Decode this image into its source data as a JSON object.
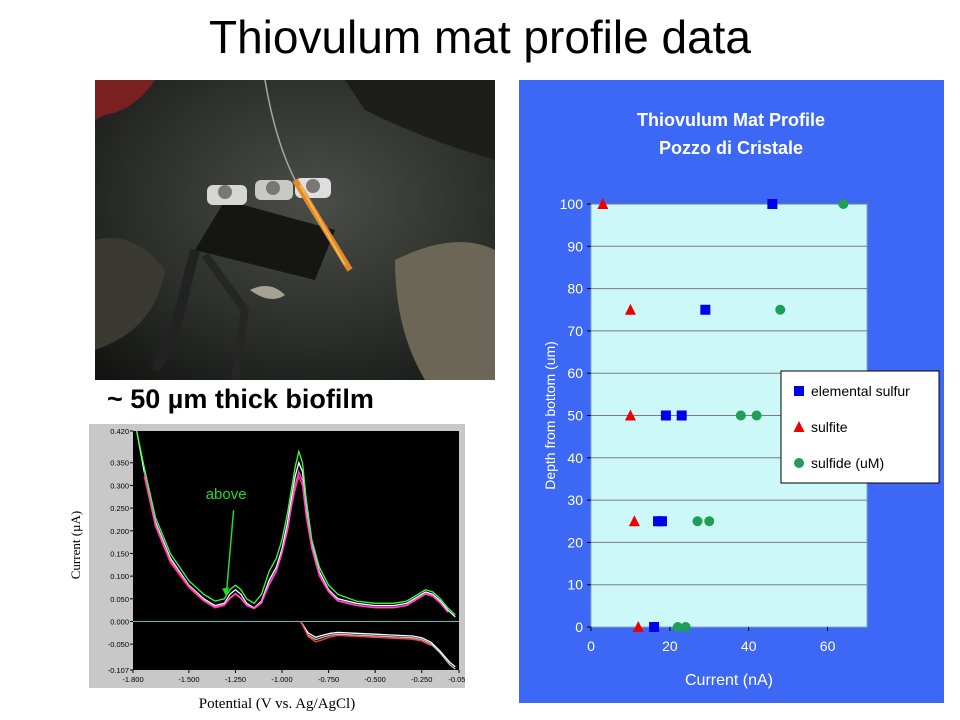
{
  "slide": {
    "title": "Thiovulum mat profile data",
    "photo_caption": "~ 50 µm thick biofilm"
  },
  "photo": {
    "icon": "field-electrode-photo"
  },
  "chart_data": [
    {
      "type": "line",
      "title": "",
      "xlabel": "Potential (V vs. Ag/AgCl)",
      "ylabel": "Current (µA)",
      "xlim": [
        -1.8,
        -0.05
      ],
      "ylim": [
        -0.107,
        0.42
      ],
      "xticks": [
        "-1.800",
        "-1.500",
        "-1.250",
        "-1.000",
        "-0.750",
        "-0.500",
        "-0.250",
        "-0.050"
      ],
      "xtick_values": [
        -1.8,
        -1.5,
        -1.25,
        -1.0,
        -0.75,
        -0.5,
        -0.25,
        -0.05
      ],
      "yticks": [
        "0.420",
        "0.350",
        "0.300",
        "0.250",
        "0.200",
        "0.150",
        "0.100",
        "0.050",
        "0.000",
        "-0.050",
        "-0.107"
      ],
      "ytick_values": [
        0.42,
        0.35,
        0.3,
        0.25,
        0.2,
        0.15,
        0.1,
        0.05,
        0.0,
        -0.05,
        -0.107
      ],
      "annotation": "above",
      "series": [
        {
          "color": "#ffffff",
          "x": [
            -1.78,
            -1.74,
            -1.68,
            -1.6,
            -1.5,
            -1.42,
            -1.36,
            -1.31,
            -1.28,
            -1.25,
            -1.22,
            -1.19,
            -1.15,
            -1.11,
            -1.07,
            -1.03,
            -1.0,
            -0.97,
            -0.95,
            -0.93,
            -0.91,
            -0.89,
            -0.87,
            -0.84,
            -0.8,
            -0.75,
            -0.7,
            -0.6,
            -0.5,
            -0.4,
            -0.33,
            -0.27,
            -0.23,
            -0.19,
            -0.15,
            -0.11,
            -0.07
          ],
          "y": [
            0.42,
            0.33,
            0.22,
            0.14,
            0.08,
            0.05,
            0.035,
            0.04,
            0.06,
            0.07,
            0.06,
            0.04,
            0.03,
            0.045,
            0.09,
            0.12,
            0.16,
            0.22,
            0.27,
            0.32,
            0.35,
            0.33,
            0.25,
            0.17,
            0.11,
            0.07,
            0.05,
            0.04,
            0.035,
            0.035,
            0.04,
            0.055,
            0.065,
            0.06,
            0.045,
            0.025,
            0.01
          ]
        },
        {
          "color": "#ff4040",
          "x": [
            -1.74,
            -1.68,
            -1.6,
            -1.5,
            -1.42,
            -1.36,
            -1.31,
            -1.28,
            -1.25,
            -1.22,
            -1.19,
            -1.15,
            -1.11,
            -1.07,
            -1.03,
            -1.0,
            -0.97,
            -0.95,
            -0.93,
            -0.91,
            -0.89,
            -0.87,
            -0.84,
            -0.8,
            -0.75,
            -0.7,
            -0.6,
            -0.5,
            -0.4,
            -0.33,
            -0.27,
            -0.23,
            -0.19,
            -0.15,
            -0.11
          ],
          "y": [
            0.32,
            0.21,
            0.13,
            0.075,
            0.045,
            0.03,
            0.035,
            0.05,
            0.06,
            0.05,
            0.035,
            0.028,
            0.04,
            0.08,
            0.11,
            0.15,
            0.2,
            0.25,
            0.29,
            0.32,
            0.3,
            0.23,
            0.16,
            0.1,
            0.065,
            0.045,
            0.035,
            0.03,
            0.03,
            0.035,
            0.05,
            0.06,
            0.055,
            0.04,
            0.02
          ]
        },
        {
          "color": "#ff44ff",
          "x": [
            -1.74,
            -1.68,
            -1.6,
            -1.5,
            -1.42,
            -1.36,
            -1.31,
            -1.28,
            -1.25,
            -1.22,
            -1.19,
            -1.15,
            -1.11,
            -1.07,
            -1.03,
            -1.0,
            -0.97,
            -0.95,
            -0.93,
            -0.91,
            -0.89,
            -0.87,
            -0.84,
            -0.8,
            -0.75,
            -0.7,
            -0.6,
            -0.5,
            -0.4,
            -0.33,
            -0.27,
            -0.23,
            -0.19,
            -0.15,
            -0.11
          ],
          "y": [
            0.33,
            0.215,
            0.135,
            0.078,
            0.047,
            0.032,
            0.037,
            0.052,
            0.062,
            0.052,
            0.036,
            0.029,
            0.042,
            0.082,
            0.112,
            0.152,
            0.205,
            0.255,
            0.3,
            0.33,
            0.31,
            0.24,
            0.165,
            0.105,
            0.067,
            0.046,
            0.036,
            0.031,
            0.031,
            0.036,
            0.052,
            0.062,
            0.057,
            0.041,
            0.021
          ]
        },
        {
          "color": "#3aff3a",
          "x": [
            -1.78,
            -1.74,
            -1.68,
            -1.6,
            -1.5,
            -1.42,
            -1.36,
            -1.31,
            -1.28,
            -1.25,
            -1.22,
            -1.19,
            -1.15,
            -1.11,
            -1.07,
            -1.03,
            -1.0,
            -0.97,
            -0.95,
            -0.93,
            -0.91,
            -0.89,
            -0.87,
            -0.84,
            -0.8,
            -0.75,
            -0.7,
            -0.6,
            -0.5,
            -0.4,
            -0.33,
            -0.27,
            -0.23,
            -0.19,
            -0.15,
            -0.11,
            -0.07
          ],
          "y": [
            0.42,
            0.34,
            0.23,
            0.15,
            0.09,
            0.06,
            0.045,
            0.05,
            0.07,
            0.08,
            0.07,
            0.05,
            0.04,
            0.06,
            0.11,
            0.14,
            0.18,
            0.24,
            0.29,
            0.34,
            0.375,
            0.35,
            0.27,
            0.18,
            0.12,
            0.08,
            0.06,
            0.045,
            0.04,
            0.04,
            0.045,
            0.06,
            0.07,
            0.065,
            0.05,
            0.03,
            0.015
          ]
        },
        {
          "color": "#c0c0c0",
          "x": [
            -0.9,
            -0.86,
            -0.82,
            -0.78,
            -0.74,
            -0.7,
            -0.6,
            -0.5,
            -0.4,
            -0.3,
            -0.25,
            -0.2,
            -0.15,
            -0.1,
            -0.07
          ],
          "y": [
            0.0,
            -0.03,
            -0.04,
            -0.035,
            -0.03,
            -0.028,
            -0.03,
            -0.032,
            -0.034,
            -0.036,
            -0.04,
            -0.05,
            -0.07,
            -0.095,
            -0.105
          ]
        },
        {
          "color": "#ffffff",
          "x": [
            -0.9,
            -0.86,
            -0.82,
            -0.78,
            -0.74,
            -0.7,
            -0.6,
            -0.5,
            -0.4,
            -0.3,
            -0.25,
            -0.2,
            -0.15,
            -0.1,
            -0.07
          ],
          "y": [
            0.0,
            -0.025,
            -0.035,
            -0.03,
            -0.026,
            -0.024,
            -0.026,
            -0.028,
            -0.03,
            -0.032,
            -0.036,
            -0.046,
            -0.066,
            -0.09,
            -0.1
          ]
        },
        {
          "color": "#ff4040",
          "x": [
            -0.9,
            -0.86,
            -0.82,
            -0.78,
            -0.74,
            -0.7,
            -0.6,
            -0.5,
            -0.4,
            -0.3,
            -0.25,
            -0.2
          ],
          "y": [
            0.0,
            -0.033,
            -0.045,
            -0.04,
            -0.034,
            -0.031,
            -0.033,
            -0.035,
            -0.037,
            -0.039,
            -0.043,
            -0.053
          ]
        }
      ]
    },
    {
      "type": "scatter",
      "title": "Thiovulum Mat Profile",
      "subtitle": "Pozzo di Cristale",
      "xlabel": "Current (nA)",
      "ylabel": "Depth from bottom (um)",
      "xlim": [
        0,
        70
      ],
      "ylim": [
        0,
        100
      ],
      "xticks": [
        0,
        20,
        40,
        60
      ],
      "yticks": [
        0,
        10,
        20,
        30,
        40,
        50,
        60,
        70,
        80,
        90,
        100
      ],
      "grid": true,
      "legend_position": "right",
      "series": [
        {
          "name": "elemental sulfur",
          "marker": "square",
          "color": "#0000ee",
          "points": [
            [
              46,
              100
            ],
            [
              29,
              75
            ],
            [
              19,
              50
            ],
            [
              23,
              50
            ],
            [
              17,
              25
            ],
            [
              18,
              25
            ],
            [
              16,
              0
            ]
          ]
        },
        {
          "name": "sulfite",
          "marker": "triangle",
          "color": "#ee0000",
          "points": [
            [
              3,
              100
            ],
            [
              10,
              75
            ],
            [
              10,
              50
            ],
            [
              11,
              25
            ],
            [
              12,
              0
            ]
          ]
        },
        {
          "name": "sulfide (uM)",
          "marker": "circle",
          "color": "#1e9e56",
          "points": [
            [
              64,
              100
            ],
            [
              48,
              75
            ],
            [
              38,
              50
            ],
            [
              42,
              50
            ],
            [
              27,
              25
            ],
            [
              30,
              25
            ],
            [
              22,
              0
            ],
            [
              24,
              0
            ]
          ]
        }
      ]
    }
  ]
}
